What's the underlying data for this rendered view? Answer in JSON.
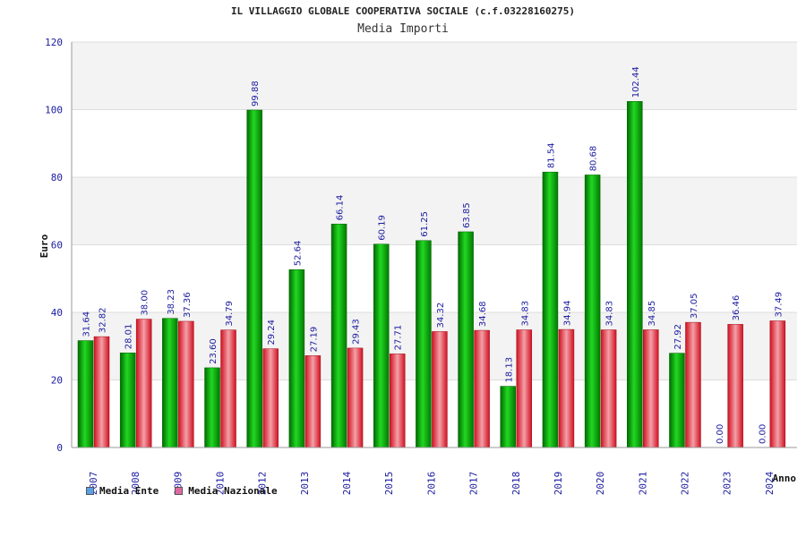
{
  "title": "IL VILLAGGIO GLOBALE COOPERATIVA SOCIALE (c.f.03228160275)",
  "subtitle": "Media Importi",
  "colors": {
    "ente": "#00b000",
    "nazionale": "#e0303a",
    "legend_ente": "#5aa0e8",
    "legend_nazionale": "#e06aa0",
    "axis_text": "#1a1aa0",
    "label_text": "#1a1aa0"
  },
  "legend": [
    {
      "name": "Media Ente"
    },
    {
      "name": "Media Nazionale"
    }
  ],
  "chart_data": {
    "type": "bar",
    "ylabel": "Euro",
    "xlabel": "Anno",
    "ylim": [
      0,
      120
    ],
    "yticks": [
      0,
      20,
      40,
      60,
      80,
      100,
      120
    ],
    "grid": true,
    "legend_position": "bottom-left",
    "categories": [
      "2007",
      "2008",
      "2009",
      "2010",
      "2012",
      "2013",
      "2014",
      "2015",
      "2016",
      "2017",
      "2018",
      "2019",
      "2020",
      "2021",
      "2022",
      "2023",
      "2024"
    ],
    "series": [
      {
        "name": "Media Ente",
        "values": [
          31.64,
          28.01,
          38.23,
          23.6,
          99.88,
          52.64,
          66.14,
          60.19,
          61.25,
          63.85,
          18.13,
          81.54,
          80.68,
          102.44,
          27.92,
          0.0,
          0.0
        ]
      },
      {
        "name": "Media Nazionale",
        "values": [
          32.82,
          38.0,
          37.36,
          34.79,
          29.24,
          27.19,
          29.43,
          27.71,
          34.32,
          34.68,
          34.83,
          34.94,
          34.83,
          34.85,
          37.05,
          36.46,
          37.49
        ]
      }
    ]
  }
}
